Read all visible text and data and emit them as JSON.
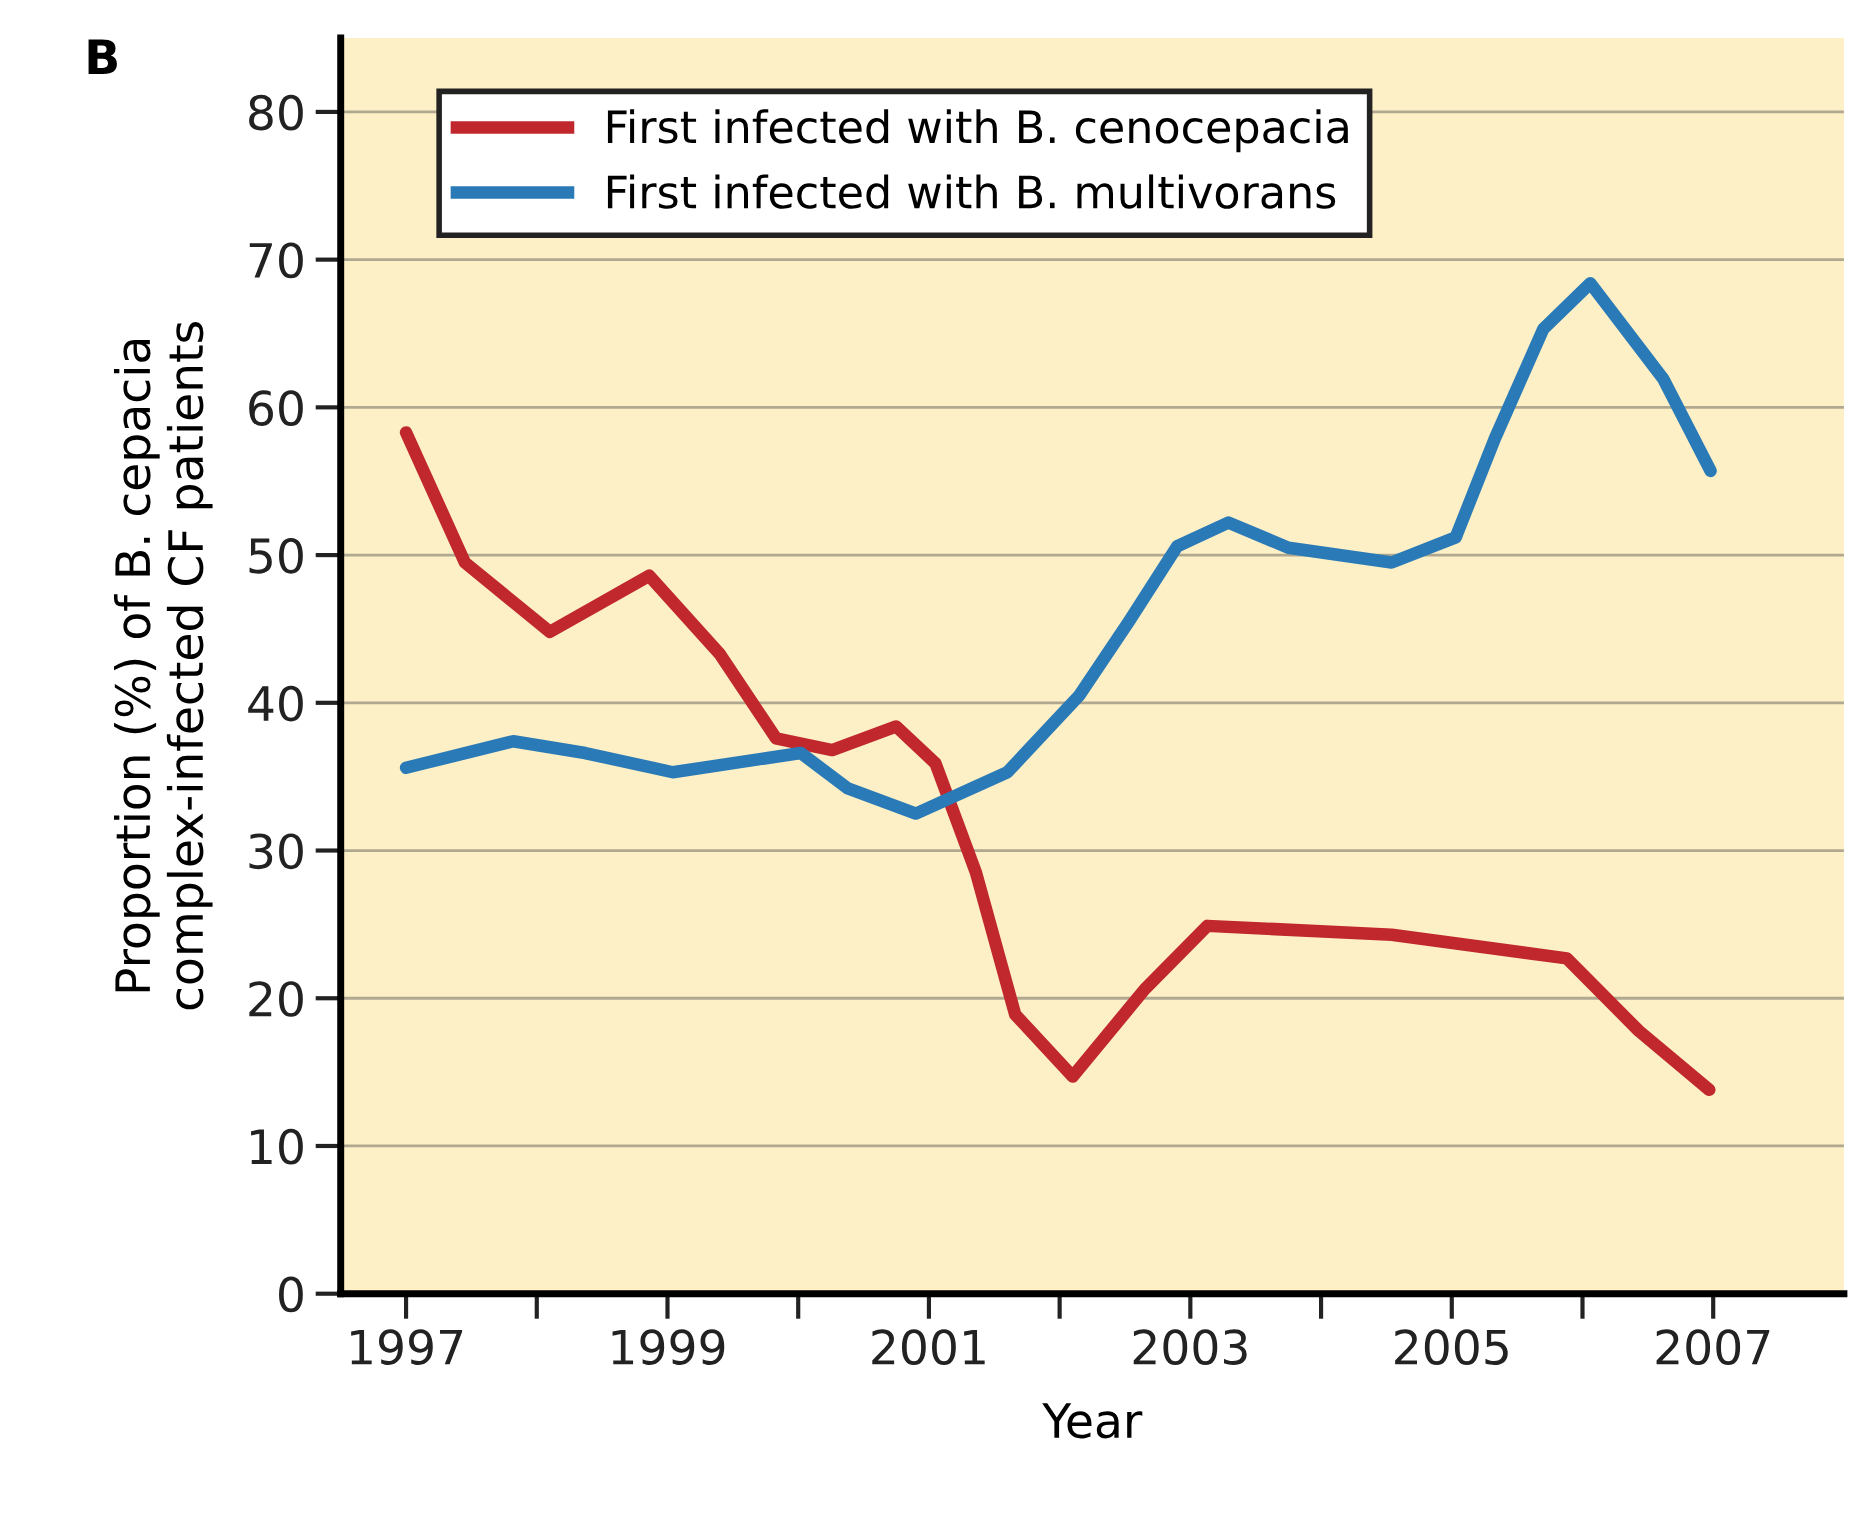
{
  "chart_data": {
    "type": "line",
    "title": "B",
    "xlabel": "Year",
    "ylabel": "Proportion (%) of B. cepacia\ncomplex-infected CF patients",
    "xlim": [
      1996.5,
      2008.0
    ],
    "ylim": [
      0,
      85
    ],
    "xticks": [
      1997,
      {
        "value": 1998,
        "label": null
      },
      1999,
      {
        "value": 2000,
        "label": null
      },
      2001,
      {
        "value": 2002,
        "label": null
      },
      2003,
      {
        "value": 2004,
        "label": null
      },
      2005,
      {
        "value": 2006,
        "label": null
      },
      2007
    ],
    "yticks": [
      0,
      10,
      20,
      30,
      40,
      50,
      60,
      70,
      80
    ],
    "grid": "y",
    "legend": "top left",
    "marker": "none",
    "line_style": "solid",
    "series": [
      {
        "name": "First infected with B. cenocepacia",
        "color": "#c0282e",
        "x": [
          1997,
          1997.45,
          1998.1,
          1998.86,
          1999.4,
          1999.83,
          2000.26,
          2000.75,
          2001.05,
          2001.36,
          2001.66,
          2002.1,
          2002.65,
          2003.13,
          2004.54,
          2005.88,
          2006.43,
          2006.97
        ],
        "values": [
          58.3,
          49.5,
          44.8,
          48.6,
          43.3,
          37.6,
          36.8,
          38.4,
          35.9,
          28.5,
          18.9,
          14.7,
          20.6,
          24.9,
          24.3,
          22.7,
          17.8,
          13.8
        ]
      },
      {
        "name": "First infected with B. multivorans",
        "color": "#2a7ab8",
        "x": [
          1997,
          1997.82,
          1998.37,
          1999.04,
          2000.02,
          2000.38,
          2000.9,
          2001.6,
          2002.15,
          2002.53,
          2002.9,
          2003.29,
          2003.75,
          2004.54,
          2005.03,
          2005.33,
          2005.7,
          2006.06,
          2006.62,
          2006.98
        ],
        "values": [
          35.6,
          37.4,
          36.6,
          35.3,
          36.6,
          34.2,
          32.5,
          35.3,
          40.5,
          45.5,
          50.6,
          52.2,
          50.5,
          49.5,
          51.2,
          57.9,
          65.3,
          68.4,
          61.9,
          55.7
        ]
      }
    ]
  }
}
